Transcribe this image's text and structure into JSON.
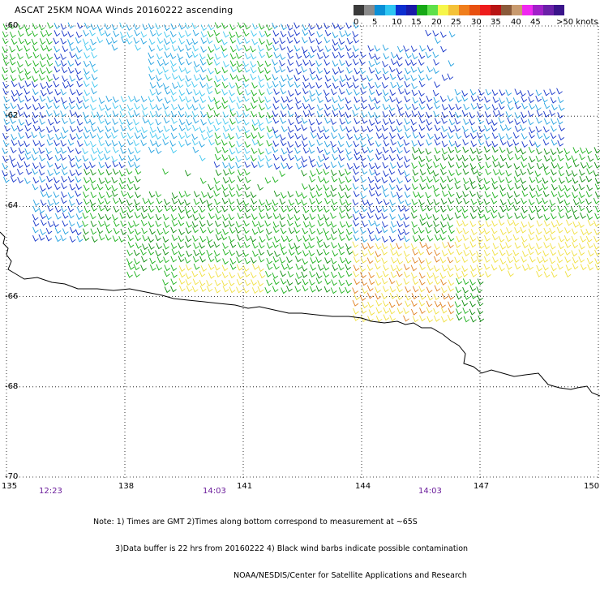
{
  "title": "ASCAT 25KM NOAA Winds 20160222 ascending",
  "color_scale": {
    "colors": [
      "#3a3a3a",
      "#8a8a8a",
      "#0a8fd6",
      "#2ec6f2",
      "#0c2fd0",
      "#1a1aa8",
      "#16a816",
      "#5ee04a",
      "#f6f64a",
      "#f4c238",
      "#f07e1c",
      "#e85010",
      "#ee1c1c",
      "#b81414",
      "#8a5a3a",
      "#c89a6e",
      "#f028f0",
      "#a020c8",
      "#6a20a8",
      "#3a148a"
    ],
    "labels": [
      "0",
      "5",
      "10",
      "15",
      "20",
      "25",
      "30",
      "35",
      "40",
      "45",
      ">50 knots"
    ]
  },
  "lat_labels": [
    "-60",
    "-62",
    "-64",
    "-66",
    "-68",
    "-70"
  ],
  "lon_labels": [
    "135",
    "138",
    "141",
    "144",
    "147",
    "150"
  ],
  "time_labels": [
    "12:23",
    "14:03",
    "14:03"
  ],
  "notes": {
    "line1": "Note: 1) Times are GMT 2)Times along bottom correspond to measurement at ~65S",
    "line2": "3)Data buffer is 22 hrs from 20160222 4) Black wind barbs indicate possible contamination",
    "line3": "NOAA/NESDIS/Center for Satellite Applications and Research"
  },
  "map": {
    "lat_range": [
      -70,
      -60
    ],
    "lon_range": [
      135,
      150
    ],
    "grid": "dotted",
    "wind_colors": {
      "blue": "#1030c8",
      "lightblue": "#20a0e0",
      "cyan": "#40c8f0",
      "green": "#18b018",
      "darkgreen": "#0a8a0a",
      "yellow": "#f0e040",
      "orange": "#e08020"
    }
  }
}
